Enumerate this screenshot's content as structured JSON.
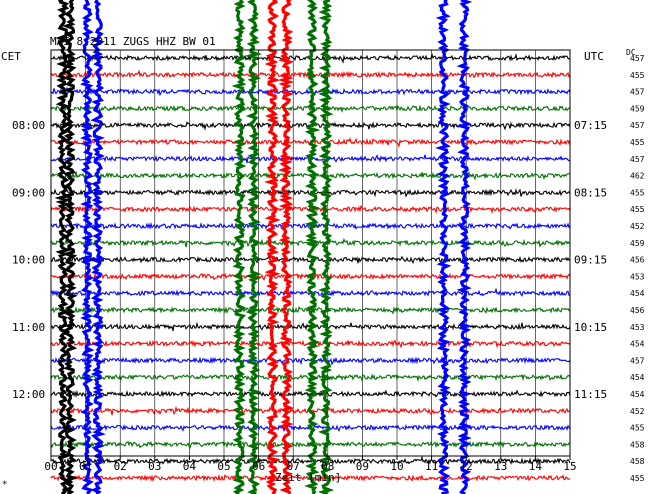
{
  "chart_data": {
    "type": "line",
    "header": "MAI 8 2011   ZUGS HHZ BW 01",
    "left_tz": "CET",
    "right_tz": "UTC",
    "dc_label": "DC",
    "xlabel": "Zeit [min]",
    "x_ticks": [
      "00",
      "01",
      "02",
      "03",
      "04",
      "05",
      "06",
      "07",
      "08",
      "09",
      "10",
      "11",
      "12",
      "13",
      "14",
      "15"
    ],
    "xlim": [
      0,
      15
    ],
    "left_hour_labels": [
      {
        "row": 4,
        "text": "08:00"
      },
      {
        "row": 8,
        "text": "09:00"
      },
      {
        "row": 12,
        "text": "10:00"
      },
      {
        "row": 16,
        "text": "11:00"
      },
      {
        "row": 20,
        "text": "12:00"
      }
    ],
    "right_hour_labels": [
      {
        "row": 4,
        "text": "07:15"
      },
      {
        "row": 8,
        "text": "08:15"
      },
      {
        "row": 12,
        "text": "09:15"
      },
      {
        "row": 16,
        "text": "10:15"
      },
      {
        "row": 20,
        "text": "11:15"
      }
    ],
    "trace_colors": [
      "#000000",
      "#ff0000",
      "#0000ff",
      "#007000"
    ],
    "dc_offsets": [
      457,
      455,
      457,
      459,
      457,
      455,
      457,
      462,
      455,
      455,
      452,
      459,
      456,
      453,
      454,
      456,
      453,
      454,
      457,
      454,
      454,
      452,
      455,
      458,
      458,
      455
    ],
    "bursts": [
      {
        "minute": 0.35,
        "color": "#000000"
      },
      {
        "minute": 0.55,
        "color": "#000000"
      },
      {
        "minute": 1.05,
        "color": "#0000ff"
      },
      {
        "minute": 1.35,
        "color": "#0000ff"
      },
      {
        "minute": 5.45,
        "color": "#007000"
      },
      {
        "minute": 5.85,
        "color": "#007000"
      },
      {
        "minute": 6.4,
        "color": "#ff0000"
      },
      {
        "minute": 6.8,
        "color": "#ff0000"
      },
      {
        "minute": 7.55,
        "color": "#007000"
      },
      {
        "minute": 7.95,
        "color": "#007000"
      },
      {
        "minute": 11.35,
        "color": "#0000ff"
      },
      {
        "minute": 11.95,
        "color": "#0000ff"
      }
    ],
    "grid": true
  },
  "footer_mark": "*"
}
